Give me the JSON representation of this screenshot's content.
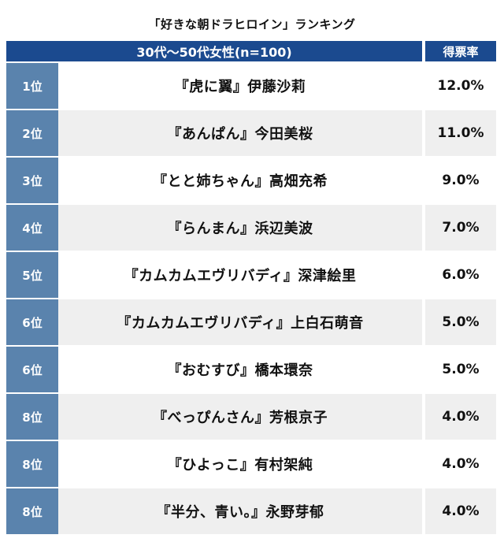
{
  "title": "「好きな朝ドラヒロイン」ランキング",
  "header": {
    "segment": "30代〜50代女性(n=100)",
    "rate_label": "得票率"
  },
  "chart_data": {
    "type": "table",
    "title": "「好きな朝ドラヒロイン」ランキング",
    "columns": [
      "30代〜50代女性(n=100)",
      "得票率"
    ],
    "rows": [
      {
        "rank": "1位",
        "name": "『虎に翼』伊藤沙莉",
        "rate": "12.0%"
      },
      {
        "rank": "2位",
        "name": "『あんぱん』今田美桜",
        "rate": "11.0%"
      },
      {
        "rank": "3位",
        "name": "『とと姉ちゃん』高畑充希",
        "rate": "9.0%"
      },
      {
        "rank": "4位",
        "name": "『らんまん』浜辺美波",
        "rate": "7.0%"
      },
      {
        "rank": "5位",
        "name": "『カムカムエヴリバディ』深津絵里",
        "rate": "6.0%"
      },
      {
        "rank": "6位",
        "name": "『カムカムエヴリバディ』上白石萌音",
        "rate": "5.0%"
      },
      {
        "rank": "6位",
        "name": "『おむすび』橋本環奈",
        "rate": "5.0%"
      },
      {
        "rank": "8位",
        "name": "『べっぴんさん』芳根京子",
        "rate": "4.0%"
      },
      {
        "rank": "8位",
        "name": "『ひよっこ』有村架純",
        "rate": "4.0%"
      },
      {
        "rank": "8位",
        "name": "『半分、青い。』永野芽郁",
        "rate": "4.0%"
      }
    ]
  },
  "colors": {
    "header_bg": "#1b4a8f",
    "rank_bg": "#5a83ad",
    "row_alt_bg": "#efefef"
  }
}
